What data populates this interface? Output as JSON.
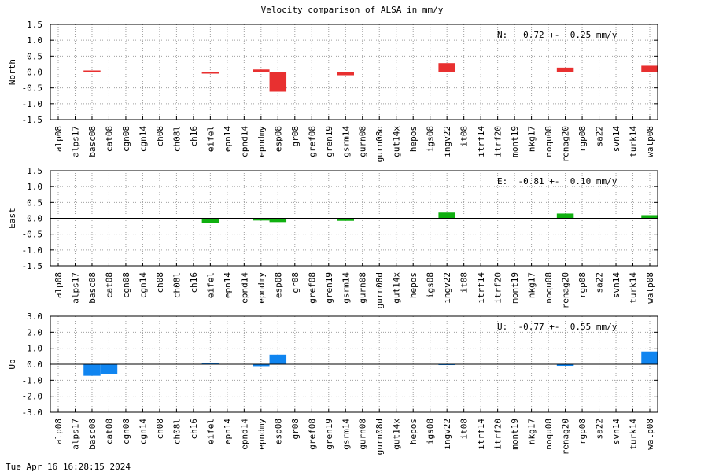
{
  "title": "Velocity comparison of ALSA in mm/y",
  "footer": "Tue Apr 16 16:28:15 2024",
  "chart_data": [
    {
      "type": "bar",
      "ylabel": "North",
      "ylim": [
        -1.5,
        1.5
      ],
      "yticks": [
        "1.5",
        "1.0",
        "0.5",
        "0.0",
        "-0.5",
        "-1.0",
        "-1.5"
      ],
      "color": "#e83030",
      "stat_label": "N:   0.72 +-  0.25 mm/y",
      "grid": true,
      "categories": [
        "alp08",
        "alps17",
        "basc08",
        "cat08",
        "cgn08",
        "cgn14",
        "ch08",
        "ch08l",
        "ch16",
        "eifel",
        "epn14",
        "epnd14",
        "epndmy",
        "esp08",
        "gr08",
        "gref08",
        "gren19",
        "gsrm14",
        "gurn08",
        "gurn08d",
        "gut14x",
        "hepos",
        "igs08",
        "ingv22",
        "it08",
        "itrf14",
        "itrf20",
        "mont19",
        "nkg17",
        "noqu08",
        "renag20",
        "rgp08",
        "sa22",
        "svn14",
        "turk14",
        "walp08"
      ],
      "values": [
        0,
        0,
        0.05,
        0,
        0,
        0,
        0,
        0,
        0,
        -0.05,
        0,
        0,
        0.08,
        -0.62,
        0,
        0,
        0,
        -0.1,
        0,
        0,
        0,
        0,
        0,
        0.28,
        0,
        0,
        0,
        0,
        0,
        0,
        0.14,
        0,
        0,
        0,
        0,
        0.2
      ]
    },
    {
      "type": "bar",
      "ylabel": "East",
      "ylim": [
        -1.5,
        1.5
      ],
      "yticks": [
        "1.5",
        "1.0",
        "0.5",
        "0.0",
        "-0.5",
        "-1.0",
        "-1.5"
      ],
      "color": "#10b010",
      "stat_label": "E:  -0.81 +-  0.10 mm/y",
      "grid": true,
      "categories": [
        "alp08",
        "alps17",
        "basc08",
        "cat08",
        "cgn08",
        "cgn14",
        "ch08",
        "ch08l",
        "ch16",
        "eifel",
        "epn14",
        "epnd14",
        "epndmy",
        "esp08",
        "gr08",
        "gref08",
        "gren19",
        "gsrm14",
        "gurn08",
        "gurn08d",
        "gut14x",
        "hepos",
        "igs08",
        "ingv22",
        "it08",
        "itrf14",
        "itrf20",
        "mont19",
        "nkg17",
        "noqu08",
        "renag20",
        "rgp08",
        "sa22",
        "svn14",
        "turk14",
        "walp08"
      ],
      "values": [
        0,
        0,
        -0.03,
        -0.03,
        0,
        0,
        0,
        0,
        0,
        -0.15,
        0,
        0,
        -0.07,
        -0.12,
        0,
        0,
        0,
        -0.08,
        0,
        0,
        0,
        0,
        0,
        0.18,
        0,
        0,
        0,
        0,
        0,
        0,
        0.15,
        0,
        0,
        0,
        0,
        0.1
      ]
    },
    {
      "type": "bar",
      "ylabel": "Up",
      "ylim": [
        -3.0,
        3.0
      ],
      "yticks": [
        "3.0",
        "2.0",
        "1.0",
        "0.0",
        "-1.0",
        "-2.0",
        "-3.0"
      ],
      "color": "#1085f0",
      "stat_label": "U:  -0.77 +-  0.55 mm/y",
      "grid": true,
      "categories": [
        "alp08",
        "alps17",
        "basc08",
        "cat08",
        "cgn08",
        "cgn14",
        "ch08",
        "ch08l",
        "ch16",
        "eifel",
        "epn14",
        "epnd14",
        "epndmy",
        "esp08",
        "gr08",
        "gref08",
        "gren19",
        "gsrm14",
        "gurn08",
        "gurn08d",
        "gut14x",
        "hepos",
        "igs08",
        "ingv22",
        "it08",
        "itrf14",
        "itrf20",
        "mont19",
        "nkg17",
        "noqu08",
        "renag20",
        "rgp08",
        "sa22",
        "svn14",
        "turk14",
        "walp08"
      ],
      "values": [
        0,
        0,
        -0.72,
        -0.62,
        0,
        0,
        0,
        0,
        0,
        0.05,
        0,
        0,
        -0.12,
        0.6,
        0,
        0,
        0,
        0,
        0,
        0,
        0,
        0,
        0,
        -0.05,
        0,
        0,
        0,
        0,
        0,
        0,
        -0.1,
        0,
        0,
        0,
        0,
        0.8
      ]
    }
  ]
}
